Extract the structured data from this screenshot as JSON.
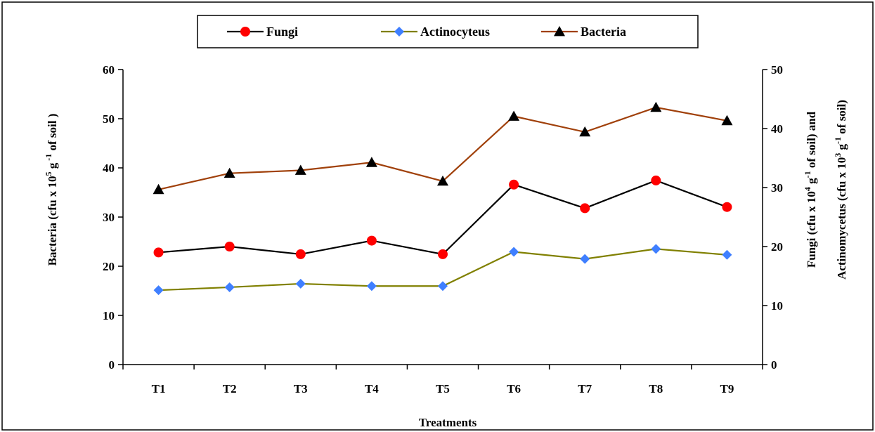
{
  "chart_data": {
    "type": "line",
    "categories": [
      "T1",
      "T2",
      "T3",
      "T4",
      "T5",
      "T6",
      "T7",
      "T8",
      "T9"
    ],
    "xlabel": "Treatments",
    "ylabel_left": {
      "base": "Bacteria (cfu x 10",
      "sup1": "5",
      "mid": " g",
      "sup2": " -1",
      "end": " of soil )"
    },
    "ylabel_right_line1": {
      "base": "Fungi (cfu x 10",
      "sup1": "4",
      "mid": " g",
      "sup2": "-1",
      "end": " of soil) and"
    },
    "ylabel_right_line2": {
      "base": "Actinomycetus (cfu x 10",
      "sup1": "3",
      "mid": " g",
      "sup2": "-1",
      "end": " of soil)"
    },
    "y_left": {
      "min": 0,
      "max": 60,
      "ticks": [
        0,
        10,
        20,
        30,
        40,
        50,
        60
      ]
    },
    "y_right": {
      "min": 0,
      "max": 50,
      "ticks": [
        0,
        10,
        20,
        30,
        40,
        50
      ]
    },
    "grid": false,
    "legend_position": "top-center",
    "series": [
      {
        "name": "Fungi",
        "axis": "right",
        "color": "#000000",
        "marker": "circle",
        "marker_color": "#ff0000",
        "values": [
          19.0,
          20.0,
          18.7,
          21.0,
          18.7,
          30.5,
          26.5,
          31.2,
          26.7
        ]
      },
      {
        "name": "Actinocyteus",
        "axis": "right",
        "color": "#808000",
        "marker": "diamond",
        "marker_color": "#3f7fff",
        "values": [
          12.6,
          13.1,
          13.7,
          13.3,
          13.3,
          19.1,
          17.9,
          19.6,
          18.6
        ]
      },
      {
        "name": "Bacteria",
        "axis": "left",
        "color": "#a0400a",
        "marker": "triangle",
        "marker_color": "#000000",
        "values": [
          35.6,
          38.9,
          39.5,
          41.1,
          37.3,
          50.5,
          47.3,
          52.3,
          49.6
        ]
      }
    ]
  }
}
